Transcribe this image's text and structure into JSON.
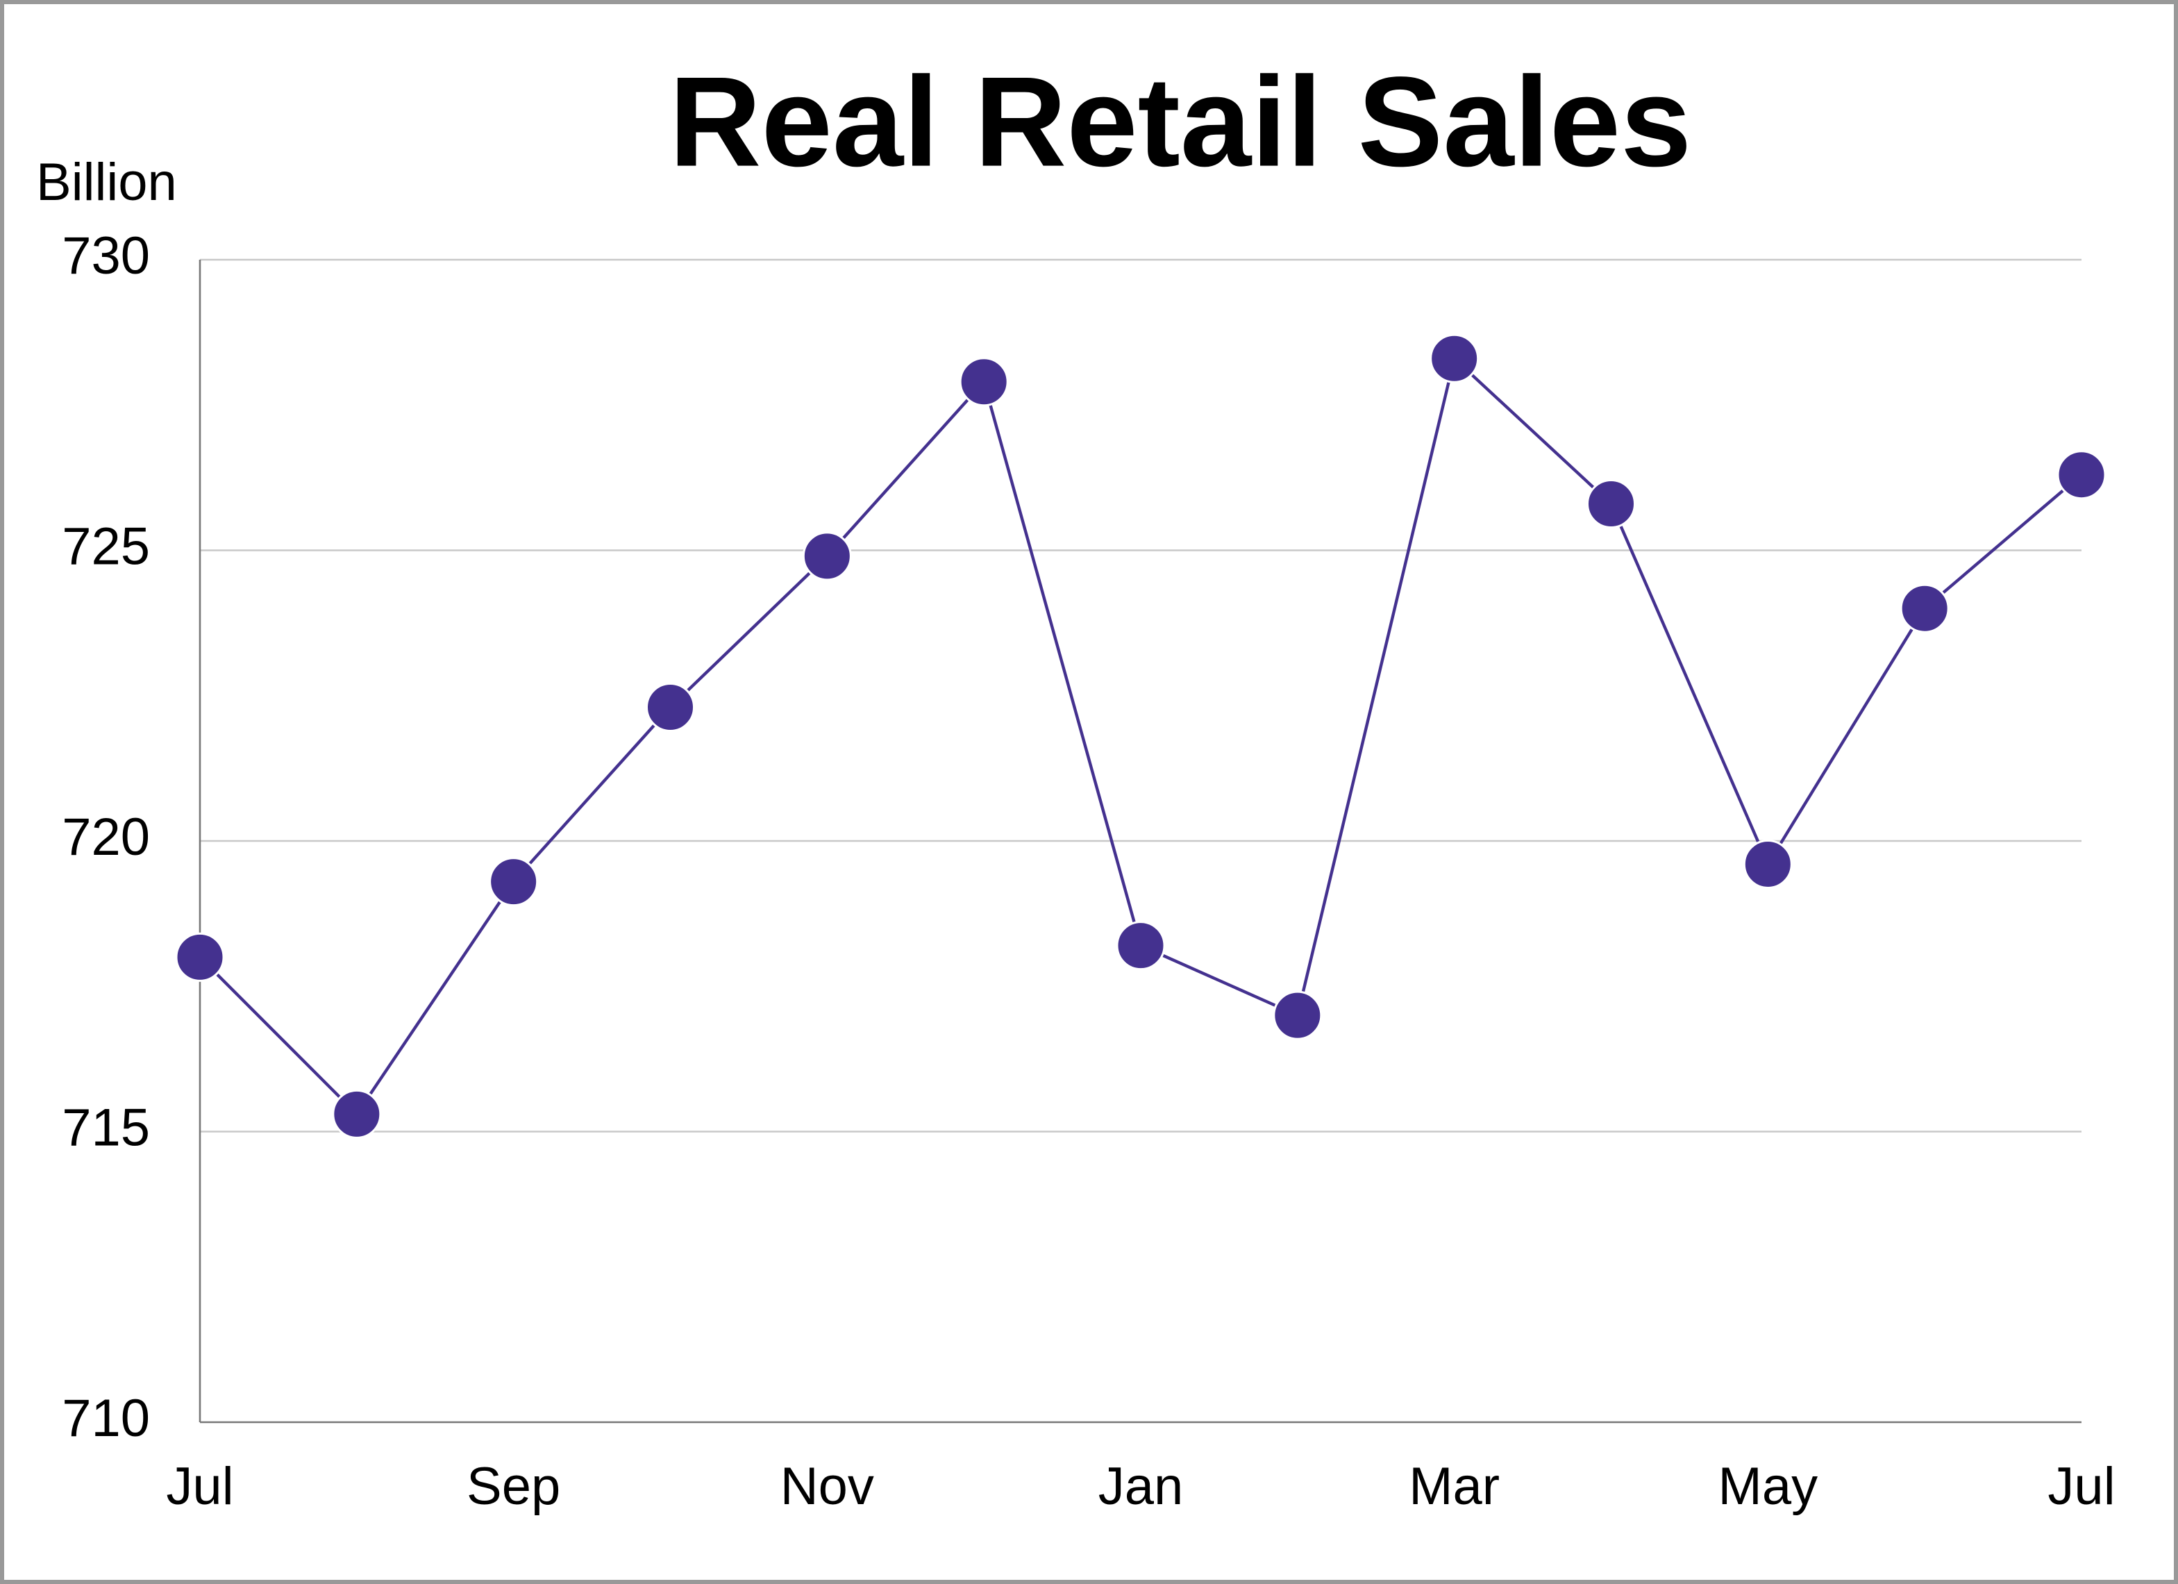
{
  "chart_data": {
    "type": "line",
    "title": "Real Retail Sales",
    "y_label": "Billion",
    "categories": [
      "Jul",
      null,
      "Sep",
      null,
      "Nov",
      null,
      "Jan",
      null,
      "Mar",
      null,
      "May",
      null,
      "Jul"
    ],
    "series": [
      {
        "name": "Real Retail Sales",
        "color": "#44318f",
        "values": [
          718.0,
          715.3,
          719.3,
          722.3,
          724.9,
          727.9,
          718.2,
          717.0,
          728.3,
          725.8,
          719.6,
          724.0,
          726.3
        ]
      }
    ],
    "ylim": [
      710,
      730
    ],
    "yticks": [
      710,
      715,
      720,
      725,
      730
    ],
    "grid": true
  }
}
